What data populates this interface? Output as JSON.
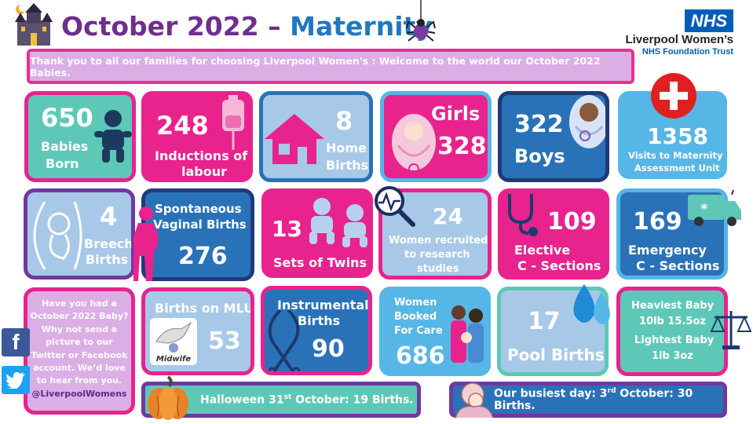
{
  "header": {
    "title_part1": "October 2022 –",
    "title_part2": "Maternity",
    "nhs": "NHS",
    "org_name": "Liverpool Women’s",
    "org_sub": "NHS Foundation Trust"
  },
  "banner": "Thank you to all our families for choosing Liverpool Women's : Welcome to the world our October 2022 Babies.",
  "row1": {
    "babies_num": "650",
    "babies_l1": "Babies",
    "babies_l2": "Born",
    "inductions_num": "248",
    "inductions_l1": "Inductions of",
    "inductions_l2": "labour",
    "home_num": "8",
    "home_l1": "Home",
    "home_l2": "Births",
    "girls_label": "Girls",
    "girls_num": "328",
    "boys_num": "322",
    "boys_label": "Boys",
    "mau_num": "1358",
    "mau_l1": "Visits to Maternity",
    "mau_l2": "Assessment Unit"
  },
  "row2": {
    "breech_num": "4",
    "breech_l1": "Breech",
    "breech_l2": "Births",
    "svb_l1": "Spontaneous",
    "svb_l2": "Vaginal Births",
    "svb_num": "276",
    "twins_num": "13",
    "twins_label": "Sets of Twins",
    "research_num": "24",
    "research_l1": "Women recruited",
    "research_l2": "to research",
    "research_l3": "studies",
    "elective_num": "109",
    "elective_l1": "Elective",
    "elective_l2": "C - Sections",
    "emergency_num": "169",
    "emergency_l1": "Emergency",
    "emergency_l2": "C - Sections"
  },
  "row3": {
    "social_lines": [
      "Have you had a",
      "October 2022 Baby?",
      "Why not send a",
      "picture to our",
      "Twitter or Facebook",
      "account.  We’d love",
      "to hear from you."
    ],
    "social_handle": "@LiverpoolWomens",
    "mlu_label": "Births on MLU",
    "mlu_num": "53",
    "midwife_text": "Midwife",
    "instr_l1": "Instrumental",
    "instr_l2": "Births",
    "instr_num": "90",
    "booked_l1": "Women",
    "booked_l2": "Booked",
    "booked_l3": "For Care",
    "booked_num": "686",
    "pool_num": "17",
    "pool_label": "Pool Births",
    "heaviest_l1": "Heaviest Baby",
    "heaviest_l2": "10lb 15.5oz",
    "lightest_l1": "Lightest Baby",
    "lightest_l2": "1lb 3oz"
  },
  "footer": {
    "halloween_pre": "Halloween 31",
    "halloween_sup": "st",
    "halloween_post": " October: 19 Births.",
    "busiest_pre": "Our busiest day: 3",
    "busiest_sup": "rd",
    "busiest_post": " October: 30 Births."
  },
  "social": {
    "facebook": "f",
    "twitter": "t"
  },
  "icons": [
    "castle-icon",
    "spider-icon",
    "baby-icon",
    "iv-bag-icon",
    "house-icon",
    "baby-girl-icon",
    "baby-boy-icon",
    "medical-cross-icon",
    "fetus-icon",
    "pregnant-woman-icon",
    "twins-icon",
    "magnifier-icon",
    "stethoscope-icon",
    "ambulance-icon",
    "stork-icon",
    "forceps-icon",
    "family-icon",
    "water-drops-icon",
    "scales-icon",
    "pumpkin-icon",
    "baby-hug-icon",
    "facebook-icon",
    "twitter-icon"
  ],
  "colors": {
    "purple": "#6e2e8f",
    "blue": "#1f78c1",
    "pink": "#e8238d",
    "teal": "#5ec8b8",
    "nhs_blue": "#005eb8",
    "lavender": "#dcaee6"
  }
}
